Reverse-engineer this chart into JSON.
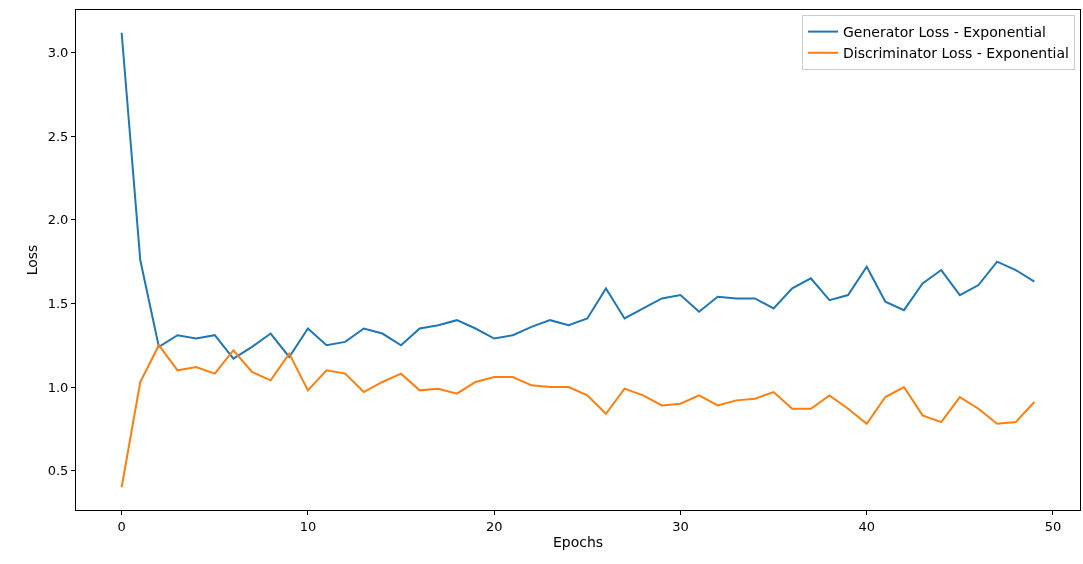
{
  "chart_data": {
    "type": "line",
    "xlabel": "Epochs",
    "ylabel": "Loss",
    "x": [
      0,
      1,
      2,
      3,
      4,
      5,
      6,
      7,
      8,
      9,
      10,
      11,
      12,
      13,
      14,
      15,
      16,
      17,
      18,
      19,
      20,
      21,
      22,
      23,
      24,
      25,
      26,
      27,
      28,
      29,
      30,
      31,
      32,
      33,
      34,
      35,
      36,
      37,
      38,
      39,
      40,
      41,
      42,
      43,
      44,
      45,
      46,
      47,
      48,
      49
    ],
    "series": [
      {
        "name": "Generator Loss - Exponential",
        "color": "#1f77b4",
        "values": [
          3.12,
          1.76,
          1.24,
          1.31,
          1.29,
          1.31,
          1.17,
          1.24,
          1.32,
          1.18,
          1.35,
          1.25,
          1.27,
          1.35,
          1.32,
          1.25,
          1.35,
          1.37,
          1.4,
          1.35,
          1.29,
          1.31,
          1.36,
          1.4,
          1.37,
          1.41,
          1.59,
          1.41,
          1.47,
          1.53,
          1.55,
          1.45,
          1.54,
          1.53,
          1.53,
          1.47,
          1.59,
          1.65,
          1.52,
          1.55,
          1.72,
          1.51,
          1.46,
          1.62,
          1.7,
          1.55,
          1.61,
          1.75,
          1.7,
          1.63
        ]
      },
      {
        "name": "Discriminator Loss - Exponential",
        "color": "#ff7f0e",
        "values": [
          0.4,
          1.03,
          1.25,
          1.1,
          1.12,
          1.08,
          1.22,
          1.09,
          1.04,
          1.2,
          0.98,
          1.1,
          1.08,
          0.97,
          1.03,
          1.08,
          0.98,
          0.99,
          0.96,
          1.03,
          1.06,
          1.06,
          1.01,
          1.0,
          1.0,
          0.95,
          0.84,
          0.99,
          0.95,
          0.89,
          0.9,
          0.95,
          0.89,
          0.92,
          0.93,
          0.97,
          0.87,
          0.87,
          0.95,
          0.87,
          0.78,
          0.94,
          1.0,
          0.83,
          0.79,
          0.94,
          0.87,
          0.78,
          0.79,
          0.91
        ]
      }
    ],
    "xlim": [
      -2.45,
      51.45
    ],
    "xticks": [
      0,
      10,
      20,
      30,
      40,
      50
    ],
    "ylim": [
      0.264,
      3.256
    ],
    "yticks": [
      0.5,
      {
        "value": 1,
        "label": "1.0"
      },
      1.5,
      {
        "value": 2,
        "label": "2.0"
      },
      2.5,
      {
        "value": 3,
        "label": "3.0"
      }
    ],
    "legend": "top right",
    "marker": "none",
    "line_style": "solid"
  }
}
